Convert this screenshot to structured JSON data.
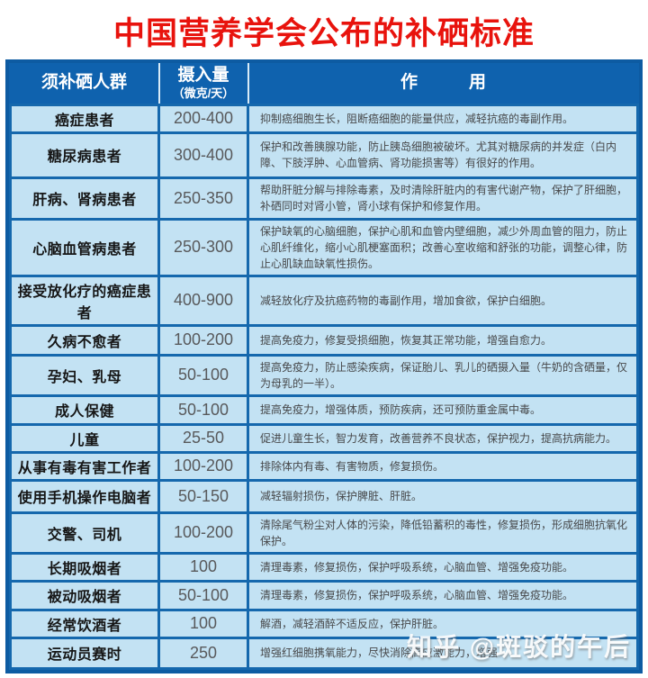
{
  "title": "中国营养学会公布的补硒标准",
  "colors": {
    "title_red": "#e8130d",
    "header_blue": "#0f62ae",
    "cell_light_blue": "#c3e2f3",
    "grid_blue": "#1568ad",
    "group_text": "#161616",
    "value_text": "#58595b",
    "effect_text": "#47484a"
  },
  "table": {
    "header": {
      "group": "须补硒人群",
      "intake_line1": "摄入量",
      "intake_line2": "（微克/天）",
      "effect": "作　　　用"
    },
    "rows": [
      {
        "group": "癌症患者",
        "intake": "200-400",
        "effect": "抑制癌细胞生长，阻断癌细胞的能量供应，减轻抗癌的毒副作用。"
      },
      {
        "group": "糖尿病患者",
        "intake": "300-400",
        "effect": "保护和改善胰腺功能，防止胰岛细胞被破坏。尤其对糖尿病的并发症（白内障、下肢浮肿、心血管病、肾功能损害等）有很好的作用。"
      },
      {
        "group": "肝病、肾病患者",
        "intake": "250-350",
        "effect": "帮助肝脏分解与排除毒素，及时清除肝脏内的有害代谢产物，保护了肝细胞，补硒同时对肾小管，肾小球有保护和修复作用。"
      },
      {
        "group": "心脑血管病患者",
        "intake": "250-300",
        "effect": "保护缺氧的心脑细胞，保护心肌和血管内壁细胞，减少外周血管的阻力，防止心肌纤维化，缩小心肌梗塞面积；改善心室收缩和舒张的功能，调整心律，防止心肌缺血缺氧性损伤。"
      },
      {
        "group": "接受放化疗的癌症患者",
        "intake": "400-900",
        "effect": "减轻放化疗及抗癌药物的毒副作用，增加食欲，保护白细胞。"
      },
      {
        "group": "久病不愈者",
        "intake": "100-200",
        "effect": "提高免疫力，修复受损细胞，恢复其正常功能，增强自愈力。"
      },
      {
        "group": "孕妇、乳母",
        "intake": "50-100",
        "effect": "提高免疫力，防止感染疾病，保证胎儿、乳儿的硒摄入量（牛奶的含硒量，仅为母乳的一半）。"
      },
      {
        "group": "成人保健",
        "intake": "50-100",
        "effect": "提高免疫力，增强体质，预防疾病，还可预防重金属中毒。"
      },
      {
        "group": "儿童",
        "intake": "25-50",
        "effect": "促进儿童生长，智力发育，改善营养不良状态，保护视力，提高抗病能力。"
      },
      {
        "group": "从事有毒有害工作者",
        "intake": "100-200",
        "effect": "排除体内有毒、有害物质，修复损伤。"
      },
      {
        "group": "使用手机操作电脑者",
        "intake": "50-150",
        "effect": "减轻辐射损伤，保护脾脏、肝脏。"
      },
      {
        "group": "交警、司机",
        "intake": "100-200",
        "effect": "清除尾气粉尘对人体的污染，降低铅蓄积的毒性，修复损伤，形成细胞抗氧化保护。"
      },
      {
        "group": "长期吸烟者",
        "intake": "100",
        "effect": "清理毒素，修复损伤，保护呼吸系统，心脑血管、增强免疫功能。"
      },
      {
        "group": "被动吸烟者",
        "intake": "50-100",
        "effect": "清理毒素，修复损伤，保护呼吸系统，心脑血管、增强免疫功能。"
      },
      {
        "group": "经常饮酒者",
        "intake": "100",
        "effect": "解酒，减轻酒醉不适反应，保护肝脏。"
      },
      {
        "group": "运动员赛时",
        "intake": "250",
        "effect": "增强红细胞携氧能力，尽快消除高应激能力，增强"
      }
    ]
  },
  "watermark": "知乎 @斑驳的午后"
}
